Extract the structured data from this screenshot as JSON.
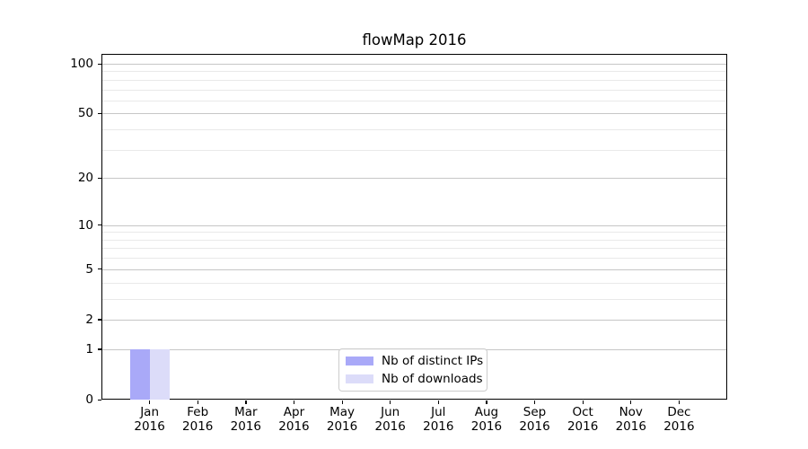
{
  "chart_data": {
    "type": "bar",
    "title": "flowMap 2016",
    "categories": [
      "Jan",
      "Feb",
      "Mar",
      "Apr",
      "May",
      "Jun",
      "Jul",
      "Aug",
      "Sep",
      "Oct",
      "Nov",
      "Dec"
    ],
    "x_year_label": "2016",
    "series": [
      {
        "name": "Nb of distinct IPs",
        "color": "#a9a9f8",
        "values": [
          1,
          0,
          0,
          0,
          0,
          0,
          0,
          0,
          0,
          0,
          0,
          0
        ]
      },
      {
        "name": "Nb of downloads",
        "color": "#dcdcf9",
        "values": [
          1,
          0,
          0,
          0,
          0,
          0,
          0,
          0,
          0,
          0,
          0,
          0
        ]
      }
    ],
    "xlabel": "",
    "ylabel": "",
    "yscale": "log1p",
    "ylim": [
      0,
      114.7
    ],
    "yticks": [
      0,
      1,
      2,
      5,
      10,
      20,
      50,
      100
    ],
    "yticks_minor": [
      3,
      4,
      6,
      7,
      8,
      9,
      30,
      40,
      60,
      70,
      80,
      90
    ],
    "grid": "both",
    "legend_position": "lower center",
    "colors": {
      "axis": "#000000",
      "grid_major": "#c6c6c6",
      "grid_minor": "#e9e9e9",
      "background": "#ffffff",
      "text": "#000000",
      "legend_border": "#cccccc"
    }
  }
}
